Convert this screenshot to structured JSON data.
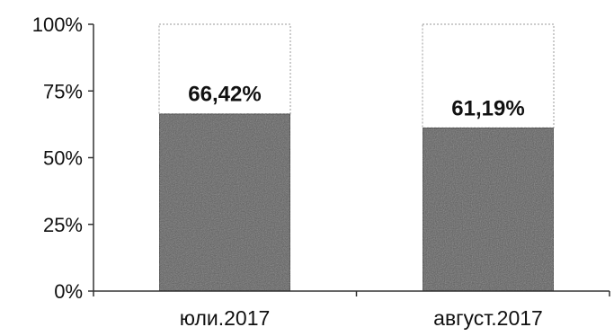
{
  "chart_data": {
    "type": "bar",
    "stacked": true,
    "categories": [
      "юли.2017",
      "август.2017"
    ],
    "values": [
      66.42,
      61.19
    ],
    "remainder_values": [
      33.58,
      38.81
    ],
    "data_labels": [
      "66,42%",
      "61,19%"
    ],
    "y_ticks": [
      "0%",
      "25%",
      "50%",
      "75%",
      "100%"
    ],
    "y_tick_values": [
      0,
      25,
      50,
      75,
      100
    ],
    "ylim": [
      0,
      100
    ],
    "title": "",
    "xlabel": "",
    "ylabel": "",
    "grid": false,
    "legend": "none",
    "colors": {
      "bar_fill": "#5a5a5a",
      "bar_stroke": "#222222",
      "remainder_fill": "#ffffff",
      "remainder_stroke": "#9a9a9a",
      "axis": "#333333"
    }
  }
}
